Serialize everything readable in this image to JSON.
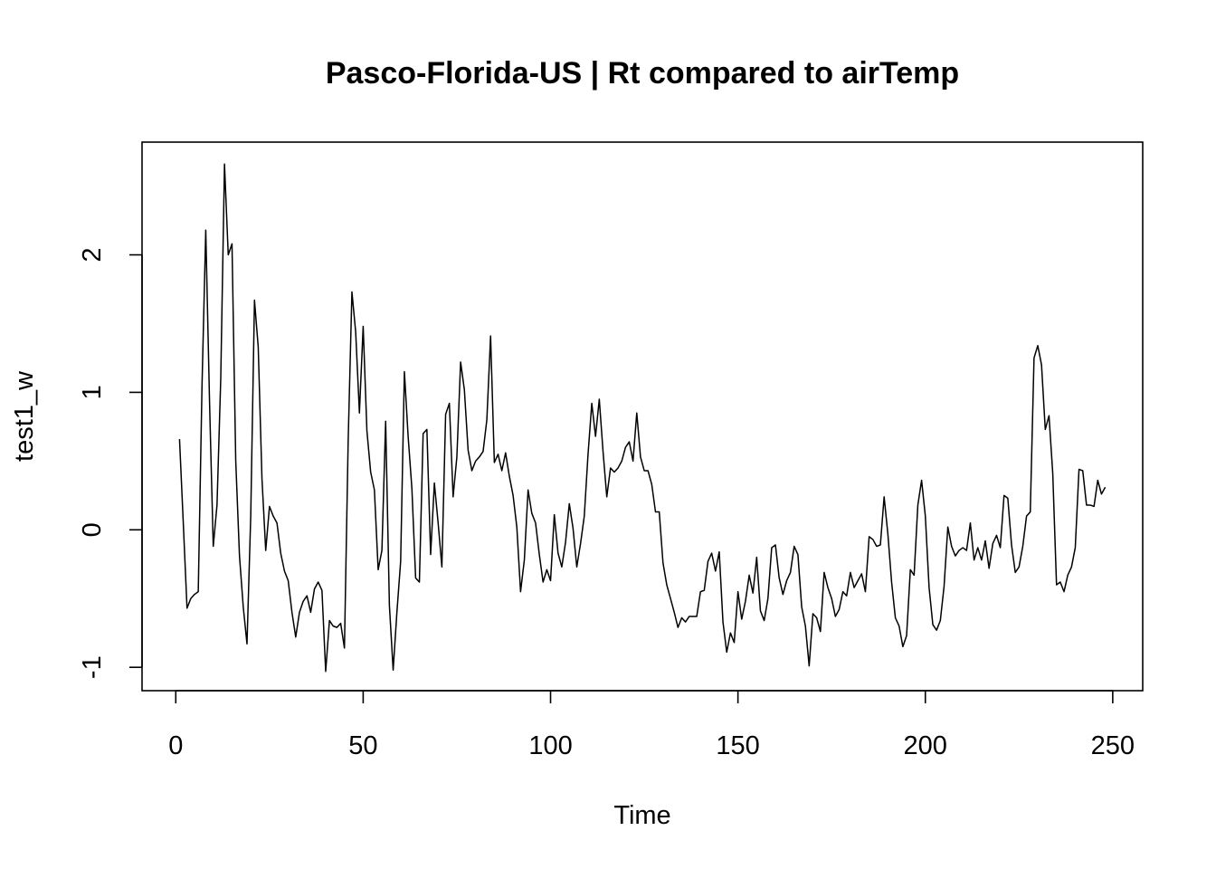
{
  "chart_data": {
    "type": "line",
    "title": "Pasco-Florida-US | Rt compared to airTemp",
    "xlabel": "Time",
    "ylabel": "test1_w",
    "xlim": [
      -9,
      258
    ],
    "ylim": [
      -1.17,
      2.82
    ],
    "x_ticks": [
      0,
      50,
      100,
      150,
      200,
      250
    ],
    "y_ticks": [
      -1,
      0,
      1,
      2
    ],
    "x_tick_labels": [
      "0",
      "50",
      "100",
      "150",
      "200",
      "250"
    ],
    "y_tick_labels": [
      "-1",
      "0",
      "1",
      "2"
    ],
    "series": [
      {
        "name": "test1_w",
        "x_start": 1,
        "values": [
          0.66,
          0.05,
          -0.57,
          -0.5,
          -0.47,
          -0.45,
          1.05,
          2.18,
          0.94,
          -0.12,
          0.18,
          1.1,
          2.66,
          2.0,
          2.08,
          0.5,
          -0.19,
          -0.56,
          -0.83,
          0.1,
          1.67,
          1.33,
          0.37,
          -0.15,
          0.17,
          0.1,
          0.05,
          -0.17,
          -0.3,
          -0.37,
          -0.6,
          -0.78,
          -0.6,
          -0.52,
          -0.48,
          -0.6,
          -0.43,
          -0.38,
          -0.44,
          -1.03,
          -0.66,
          -0.7,
          -0.71,
          -0.68,
          -0.86,
          0.65,
          1.73,
          1.44,
          0.85,
          1.48,
          0.72,
          0.42,
          0.29,
          -0.29,
          -0.15,
          0.79,
          -0.55,
          -1.02,
          -0.6,
          -0.23,
          1.15,
          0.68,
          0.3,
          -0.35,
          -0.38,
          0.7,
          0.73,
          -0.18,
          0.34,
          0.05,
          -0.27,
          0.84,
          0.92,
          0.24,
          0.53,
          1.22,
          1.02,
          0.58,
          0.43,
          0.5,
          0.53,
          0.57,
          0.8,
          1.41,
          0.49,
          0.55,
          0.43,
          0.56,
          0.39,
          0.25,
          0.02,
          -0.45,
          -0.22,
          0.29,
          0.12,
          0.05,
          -0.18,
          -0.38,
          -0.29,
          -0.37,
          0.11,
          -0.17,
          -0.27,
          -0.09,
          0.19,
          0.01,
          -0.27,
          -0.1,
          0.1,
          0.55,
          0.92,
          0.68,
          0.95,
          0.57,
          0.24,
          0.45,
          0.42,
          0.45,
          0.5,
          0.6,
          0.64,
          0.5,
          0.85,
          0.53,
          0.43,
          0.43,
          0.33,
          0.13,
          0.13,
          -0.24,
          -0.4,
          -0.5,
          -0.6,
          -0.71,
          -0.64,
          -0.67,
          -0.63,
          -0.63,
          -0.63,
          -0.45,
          -0.44,
          -0.23,
          -0.17,
          -0.3,
          -0.16,
          -0.67,
          -0.89,
          -0.75,
          -0.82,
          -0.45,
          -0.65,
          -0.52,
          -0.33,
          -0.46,
          -0.2,
          -0.59,
          -0.66,
          -0.5,
          -0.13,
          -0.11,
          -0.35,
          -0.47,
          -0.37,
          -0.31,
          -0.12,
          -0.18,
          -0.56,
          -0.7,
          -0.99,
          -0.61,
          -0.64,
          -0.74,
          -0.31,
          -0.42,
          -0.5,
          -0.63,
          -0.58,
          -0.45,
          -0.48,
          -0.31,
          -0.42,
          -0.37,
          -0.32,
          -0.45,
          -0.05,
          -0.07,
          -0.12,
          -0.11,
          0.24,
          -0.03,
          -0.38,
          -0.64,
          -0.7,
          -0.85,
          -0.77,
          -0.29,
          -0.33,
          0.18,
          0.36,
          0.1,
          -0.42,
          -0.69,
          -0.73,
          -0.66,
          -0.41,
          0.02,
          -0.12,
          -0.19,
          -0.15,
          -0.13,
          -0.15,
          0.05,
          -0.22,
          -0.13,
          -0.22,
          -0.08,
          -0.28,
          -0.1,
          -0.04,
          -0.13,
          0.25,
          0.23,
          -0.11,
          -0.31,
          -0.27,
          -0.12,
          0.1,
          0.13,
          1.25,
          1.34,
          1.2,
          0.73,
          0.83,
          0.41,
          -0.4,
          -0.38,
          -0.45,
          -0.33,
          -0.27,
          -0.13,
          0.44,
          0.43,
          0.18,
          0.18,
          0.17,
          0.36,
          0.26,
          0.31
        ]
      }
    ]
  }
}
